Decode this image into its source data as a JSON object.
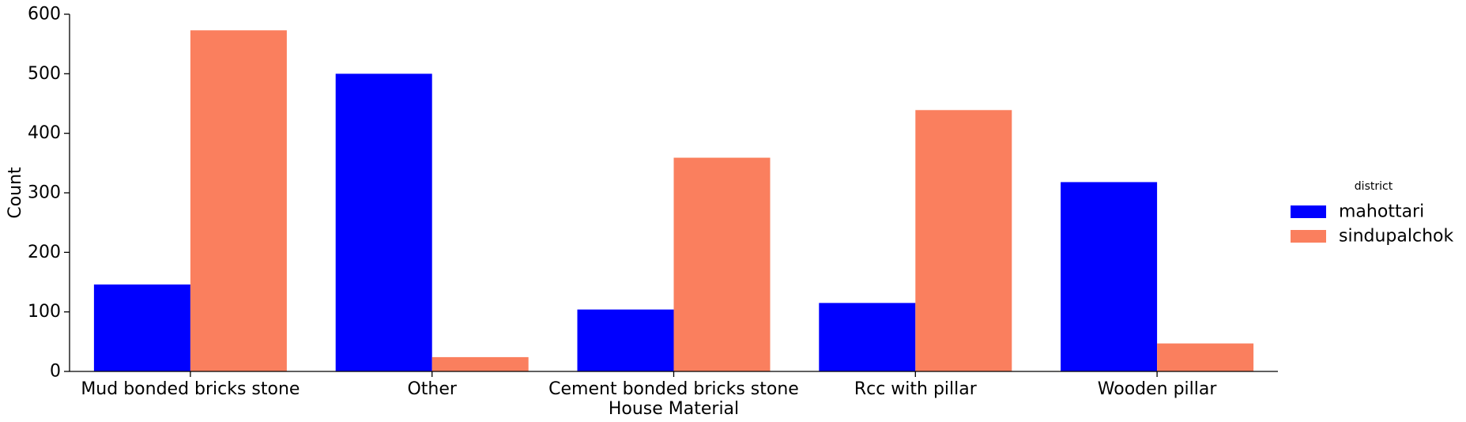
{
  "chart_data": {
    "type": "bar",
    "xlabel": "House Material",
    "ylabel": "Count",
    "ylim": [
      0,
      600
    ],
    "yticks": [
      0,
      100,
      200,
      300,
      400,
      500,
      600
    ],
    "categories": [
      "Mud bonded bricks stone",
      "Other",
      "Cement bonded bricks stone",
      "Rcc with pillar",
      "Wooden pillar"
    ],
    "series": [
      {
        "name": "mahottari",
        "color": "#0000ff",
        "values": [
          146,
          500,
          104,
          115,
          318
        ]
      },
      {
        "name": "sindupalchok",
        "color": "#fa7f5e",
        "values": [
          573,
          24,
          359,
          439,
          47
        ]
      }
    ],
    "legend": {
      "title": "district",
      "placement": "right"
    },
    "grid": false
  }
}
